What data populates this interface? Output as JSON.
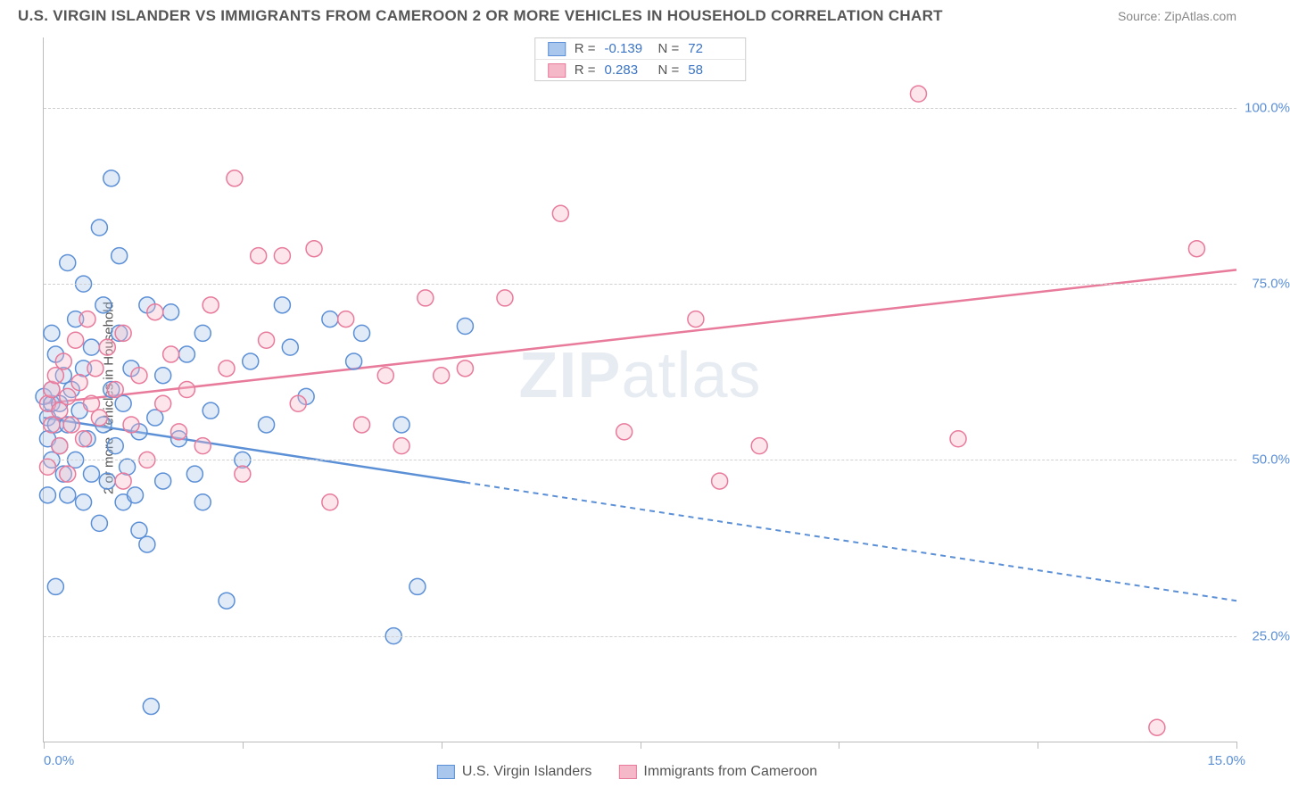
{
  "title": "U.S. VIRGIN ISLANDER VS IMMIGRANTS FROM CAMEROON 2 OR MORE VEHICLES IN HOUSEHOLD CORRELATION CHART",
  "source": "Source: ZipAtlas.com",
  "y_axis_label": "2 or more Vehicles in Household",
  "watermark_a": "ZIP",
  "watermark_b": "atlas",
  "chart": {
    "type": "scatter",
    "background_color": "#ffffff",
    "grid_color": "#d0d0d0",
    "axis_color": "#bbbbbb",
    "tick_label_color": "#5b8fd6",
    "xlim": [
      0,
      15
    ],
    "ylim": [
      10,
      110
    ],
    "y_gridlines": [
      25,
      50,
      75,
      100
    ],
    "y_tick_labels": [
      "25.0%",
      "50.0%",
      "75.0%",
      "100.0%"
    ],
    "x_ticks": [
      0,
      2.5,
      5,
      7.5,
      10,
      12.5,
      15
    ],
    "x_tick_labels": {
      "min": "0.0%",
      "max": "15.0%"
    },
    "marker_radius": 9,
    "marker_stroke_width": 1.5,
    "marker_fill_opacity": 0.35,
    "line_width": 2.5
  },
  "series": [
    {
      "key": "usvi",
      "label": "U.S. Virgin Islanders",
      "color_stroke": "#5b8fd6",
      "color_fill": "#a9c6ec",
      "stats": {
        "R_label": "R =",
        "R": "-0.139",
        "N_label": "N =",
        "N": "72"
      },
      "trend": {
        "x1": 0,
        "y1": 56,
        "x2": 15,
        "y2": 30,
        "solid_until_x": 5.3
      },
      "points": [
        [
          0.0,
          59
        ],
        [
          0.05,
          56
        ],
        [
          0.05,
          53
        ],
        [
          0.1,
          58
        ],
        [
          0.1,
          60
        ],
        [
          0.1,
          50
        ],
        [
          0.15,
          65
        ],
        [
          0.15,
          55
        ],
        [
          0.2,
          52
        ],
        [
          0.2,
          58
        ],
        [
          0.25,
          48
        ],
        [
          0.25,
          62
        ],
        [
          0.3,
          55
        ],
        [
          0.3,
          45
        ],
        [
          0.35,
          60
        ],
        [
          0.4,
          50
        ],
        [
          0.4,
          70
        ],
        [
          0.45,
          57
        ],
        [
          0.5,
          44
        ],
        [
          0.5,
          63
        ],
        [
          0.55,
          53
        ],
        [
          0.6,
          48
        ],
        [
          0.6,
          66
        ],
        [
          0.7,
          83
        ],
        [
          0.7,
          41
        ],
        [
          0.75,
          55
        ],
        [
          0.75,
          72
        ],
        [
          0.8,
          47
        ],
        [
          0.85,
          60
        ],
        [
          0.85,
          90
        ],
        [
          0.9,
          52
        ],
        [
          0.95,
          68
        ],
        [
          1.0,
          44
        ],
        [
          1.0,
          58
        ],
        [
          1.05,
          49
        ],
        [
          1.1,
          63
        ],
        [
          1.2,
          54
        ],
        [
          1.2,
          40
        ],
        [
          1.3,
          72
        ],
        [
          1.3,
          38
        ],
        [
          1.35,
          15
        ],
        [
          1.4,
          56
        ],
        [
          1.5,
          62
        ],
        [
          1.5,
          47
        ],
        [
          1.6,
          71
        ],
        [
          1.7,
          53
        ],
        [
          1.8,
          65
        ],
        [
          1.9,
          48
        ],
        [
          2.0,
          68
        ],
        [
          2.0,
          44
        ],
        [
          2.1,
          57
        ],
        [
          2.3,
          30
        ],
        [
          2.5,
          50
        ],
        [
          2.6,
          64
        ],
        [
          2.8,
          55
        ],
        [
          3.0,
          72
        ],
        [
          3.1,
          66
        ],
        [
          3.3,
          59
        ],
        [
          3.6,
          70
        ],
        [
          3.9,
          64
        ],
        [
          4.0,
          68
        ],
        [
          4.4,
          25
        ],
        [
          4.5,
          55
        ],
        [
          4.7,
          32
        ],
        [
          5.3,
          69
        ],
        [
          0.15,
          32
        ],
        [
          0.3,
          78
        ],
        [
          0.5,
          75
        ],
        [
          0.1,
          68
        ],
        [
          0.95,
          79
        ],
        [
          1.15,
          45
        ],
        [
          0.05,
          45
        ]
      ]
    },
    {
      "key": "cameroon",
      "label": "Immigrants from Cameroon",
      "color_stroke": "#e87a9b",
      "color_fill": "#f5b8c9",
      "stats": {
        "R_label": "R =",
        "R": "0.283",
        "N_label": "N =",
        "N": "58"
      },
      "trend": {
        "x1": 0,
        "y1": 58,
        "x2": 15,
        "y2": 77,
        "solid_until_x": 15
      },
      "points": [
        [
          0.05,
          58
        ],
        [
          0.1,
          60
        ],
        [
          0.1,
          55
        ],
        [
          0.15,
          62
        ],
        [
          0.2,
          57
        ],
        [
          0.2,
          52
        ],
        [
          0.25,
          64
        ],
        [
          0.3,
          59
        ],
        [
          0.35,
          55
        ],
        [
          0.4,
          67
        ],
        [
          0.45,
          61
        ],
        [
          0.5,
          53
        ],
        [
          0.55,
          70
        ],
        [
          0.6,
          58
        ],
        [
          0.65,
          63
        ],
        [
          0.7,
          56
        ],
        [
          0.8,
          66
        ],
        [
          0.9,
          60
        ],
        [
          1.0,
          68
        ],
        [
          1.1,
          55
        ],
        [
          1.2,
          62
        ],
        [
          1.3,
          50
        ],
        [
          1.4,
          71
        ],
        [
          1.5,
          58
        ],
        [
          1.6,
          65
        ],
        [
          1.7,
          54
        ],
        [
          1.8,
          60
        ],
        [
          2.0,
          52
        ],
        [
          2.1,
          72
        ],
        [
          2.3,
          63
        ],
        [
          2.4,
          90
        ],
        [
          2.5,
          48
        ],
        [
          2.7,
          79
        ],
        [
          2.8,
          67
        ],
        [
          3.0,
          79
        ],
        [
          3.2,
          58
        ],
        [
          3.4,
          80
        ],
        [
          3.6,
          44
        ],
        [
          3.8,
          70
        ],
        [
          4.0,
          55
        ],
        [
          4.3,
          62
        ],
        [
          4.5,
          52
        ],
        [
          4.8,
          73
        ],
        [
          5.0,
          62
        ],
        [
          5.3,
          63
        ],
        [
          5.8,
          73
        ],
        [
          6.5,
          85
        ],
        [
          7.3,
          54
        ],
        [
          8.2,
          70
        ],
        [
          8.5,
          47
        ],
        [
          9.0,
          52
        ],
        [
          11.0,
          102
        ],
        [
          11.5,
          53
        ],
        [
          14.0,
          12
        ],
        [
          14.5,
          80
        ],
        [
          0.05,
          49
        ],
        [
          0.3,
          48
        ],
        [
          1.0,
          47
        ]
      ]
    }
  ]
}
